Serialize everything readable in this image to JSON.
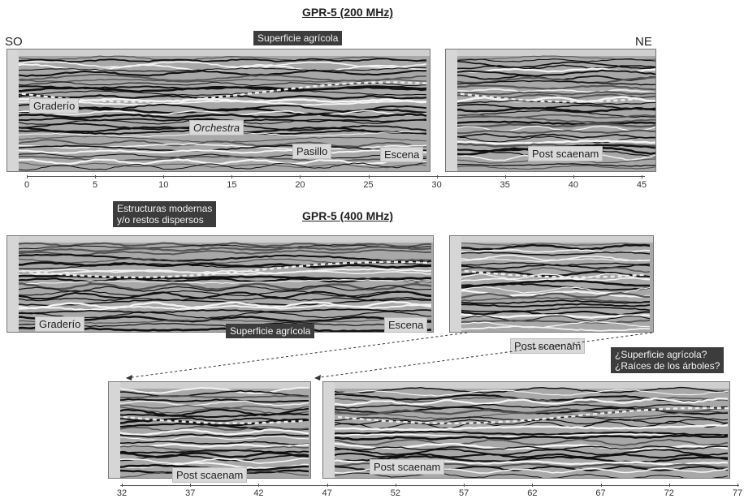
{
  "top": {
    "title": "GPR-5 (200 MHz)",
    "dir_left": "SO",
    "dir_right": "NE",
    "surface_label": "Superficie agrícola",
    "labels": {
      "graderio": "Graderío",
      "orchestra": "Orchestra",
      "pasillo": "Pasillo",
      "escena": "Escena",
      "post": "Post scaenam"
    },
    "axis_ticks": [
      "0",
      "5",
      "10",
      "15",
      "20",
      "25",
      "30",
      "35",
      "40",
      "45"
    ]
  },
  "middle": {
    "title": "GPR-5 (400 MHz)",
    "note": "Estructuras modernas\ny/o restos dispersos",
    "labels": {
      "graderio": "Graderío",
      "surface": "Superficie agrícola",
      "escena": "Escena",
      "post": "Post scaenam"
    }
  },
  "bottom": {
    "question": "¿Superficie agrícola?\n¿Raíces de los árboles?",
    "labels": {
      "post_left": "Post scaenam",
      "post_right": "Post scaenam"
    },
    "axis_ticks": [
      "32",
      "37",
      "42",
      "47",
      "52",
      "57",
      "62",
      "67",
      "72",
      "77"
    ]
  },
  "colors": {
    "panel_bg": "#9a9a9a",
    "label_light": "#d9d9d9",
    "label_dark": "#3c3c3c",
    "dashed": "#e8e8e8"
  }
}
